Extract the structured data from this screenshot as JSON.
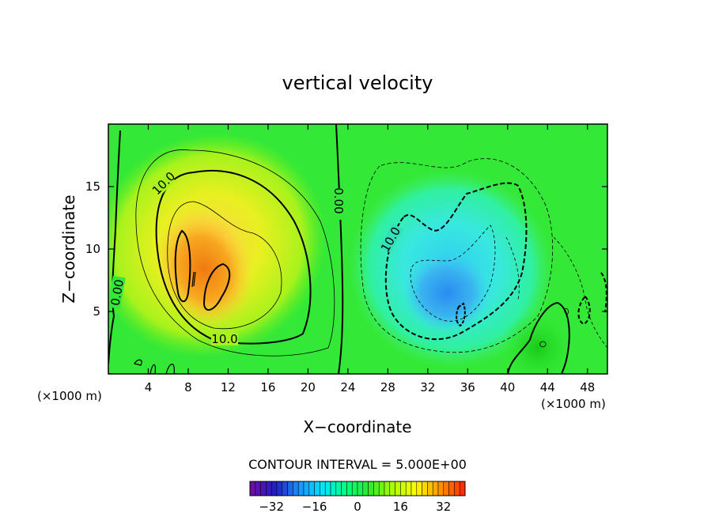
{
  "chart_data": {
    "type": "heatmap",
    "title": "vertical velocity",
    "xlabel": "X−coordinate",
    "ylabel": "Z−coordinate",
    "x_unit_left": "(×1000 m)",
    "x_unit_right": "(×1000 m)",
    "xlim": [
      0,
      50
    ],
    "ylim": [
      0,
      20
    ],
    "x_ticks": [
      "4",
      "8",
      "12",
      "16",
      "20",
      "24",
      "28",
      "32",
      "36",
      "40",
      "44",
      "48"
    ],
    "y_ticks": [
      "5",
      "10",
      "15"
    ],
    "contour_interval_label": "CONTOUR INTERVAL = 5.000E+00",
    "contour_interval": 5.0,
    "contour_labels": [
      "10.0",
      "10.0",
      "0.00",
      "0.00",
      "10.0"
    ],
    "colorbar": {
      "range": [
        -40,
        40
      ],
      "tick_labels": [
        "−32",
        "−16",
        "0",
        "16",
        "32"
      ],
      "colors": [
        "#6a0dad",
        "#2020c0",
        "#1e90ff",
        "#00e5ff",
        "#00ff80",
        "#2ee82e",
        "#aaff00",
        "#ffff00",
        "#ff9900",
        "#ff3000"
      ]
    },
    "features": [
      {
        "name": "updraft core",
        "x": 8,
        "z": 9.5,
        "value": 22
      },
      {
        "name": "updraft core",
        "x": 11.5,
        "z": 7.5,
        "value": 21
      },
      {
        "name": "downdraft core",
        "x": 35,
        "z": 5,
        "value": -17
      },
      {
        "name": "downdraft",
        "x": 31,
        "z": 7,
        "value": -13
      }
    ]
  }
}
